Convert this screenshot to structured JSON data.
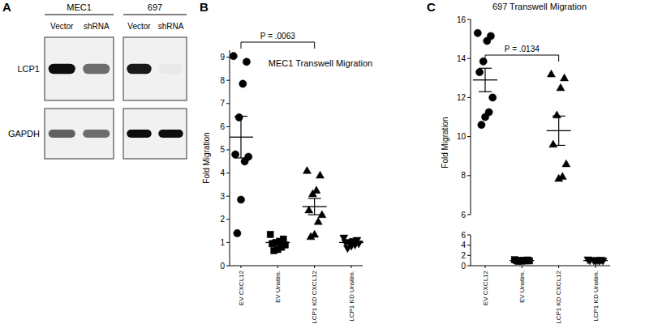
{
  "blot": {
    "panel": "A",
    "proteins": [
      "LCP1",
      "GAPDH"
    ],
    "cell_lines": [
      {
        "name": "MEC1",
        "lanes": [
          "Vector",
          "shRNA"
        ],
        "bands": [
          [
            0.95,
            0.55
          ],
          [
            0.6,
            0.55
          ]
        ]
      },
      {
        "name": "697",
        "lanes": [
          "Vector",
          "shRNA"
        ],
        "bands": [
          [
            0.9,
            0.03
          ],
          [
            0.95,
            0.95
          ]
        ]
      }
    ]
  },
  "chart_data": [
    {
      "panel": "B",
      "type": "scatter",
      "title": "MEC1 Transwell Migration",
      "y_label": "Fold Migration",
      "categories": [
        "EV CXCL12",
        "EV Unstim.",
        "LCP1 KD CXCL12",
        "LCP1 KD Unstim."
      ],
      "color": "#000000",
      "groups": [
        {
          "marker": "circle",
          "values": [
            9.05,
            8.8,
            7.85,
            6.4,
            4.8,
            4.7,
            4.5,
            2.85,
            1.4
          ],
          "mean": 5.55,
          "sem": 0.9
        },
        {
          "marker": "square",
          "values": [
            1.35,
            1.15,
            1.05,
            1.0,
            0.95,
            0.9,
            0.8,
            0.7,
            0.65
          ],
          "mean": 1.0,
          "sem": 0.08
        },
        {
          "marker": "triangle",
          "values": [
            4.1,
            3.9,
            3.25,
            3.1,
            2.4,
            2.2,
            1.9,
            1.35,
            1.25
          ],
          "mean": 2.55,
          "sem": 0.35
        },
        {
          "marker": "triangle-down",
          "values": [
            1.2,
            1.1,
            1.05,
            1.0,
            1.0,
            0.95,
            0.9,
            0.85,
            0.75
          ],
          "mean": 1.0,
          "sem": 0.05
        }
      ],
      "ylim": [
        0,
        9.3
      ],
      "yticks": [
        0,
        1,
        2,
        3,
        4,
        5,
        6,
        7,
        8,
        9
      ],
      "annotations": [
        {
          "text": "P = .0063",
          "between": [
            0,
            2
          ]
        }
      ]
    },
    {
      "panel": "C",
      "type": "scatter",
      "title": "697 Transwell Migration",
      "y_label": "Fold Migration",
      "categories": [
        "EV CXCL12",
        "EV Unstim.",
        "LCP1 KD CXCL12",
        "LCP1 KD Unstim."
      ],
      "color": "#000000",
      "groups": [
        {
          "marker": "circle",
          "values": [
            15.3,
            15.15,
            14.9,
            13.85,
            13.3,
            12.0,
            11.25,
            11.0,
            10.6
          ],
          "mean": 12.9,
          "sem": 0.6
        },
        {
          "marker": "square",
          "values": [
            1.15,
            1.1,
            1.05,
            1.0,
            1.0,
            0.95,
            0.95,
            0.9,
            0.85
          ],
          "mean": 1.0,
          "sem": 0.03
        },
        {
          "marker": "triangle",
          "values": [
            13.2,
            13.0,
            12.5,
            11.1,
            9.6,
            8.6,
            7.95,
            7.85
          ],
          "mean": 10.3,
          "sem": 0.75
        },
        {
          "marker": "triangle-down",
          "values": [
            1.15,
            1.1,
            1.05,
            1.0,
            1.0,
            0.95,
            0.9,
            0.85
          ],
          "mean": 1.0,
          "sem": 0.04
        }
      ],
      "y_segments": [
        {
          "ylim": [
            0,
            6
          ],
          "yticks": [
            0,
            2,
            4,
            6
          ]
        },
        {
          "ylim": [
            6,
            16
          ],
          "yticks": [
            6,
            8,
            10,
            12,
            14,
            16
          ]
        }
      ],
      "annotations": [
        {
          "text": "P = .0134",
          "between": [
            0,
            2
          ]
        }
      ]
    }
  ]
}
